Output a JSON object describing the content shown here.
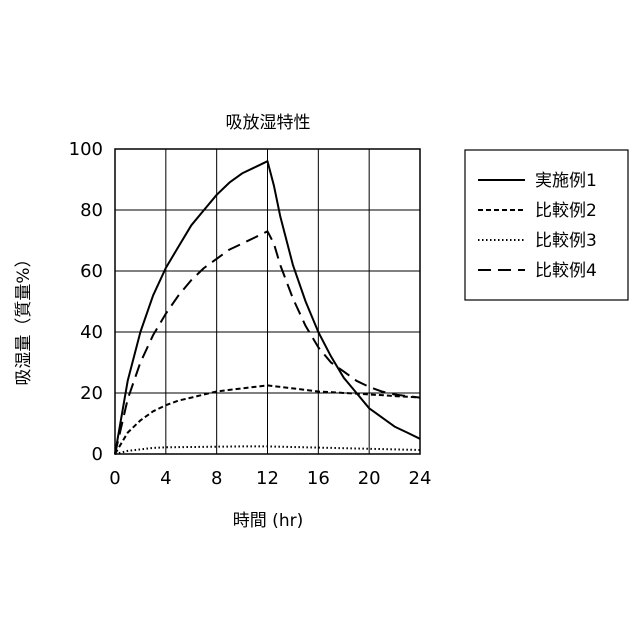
{
  "chart_data": {
    "type": "line",
    "title": "吸放湿特性",
    "xlabel": "時間 (hr)",
    "ylabel": "吸湿量（質量%）",
    "xlim": [
      0,
      24
    ],
    "ylim": [
      0,
      100
    ],
    "xticks": [
      0,
      4,
      8,
      12,
      16,
      20,
      24
    ],
    "yticks": [
      0,
      20,
      40,
      60,
      80,
      100
    ],
    "grid": true,
    "legend_position": "right",
    "series": [
      {
        "name": "実施例1",
        "style": "solid",
        "x": [
          0,
          1,
          2,
          3,
          4,
          5,
          6,
          7,
          8,
          9,
          10,
          11,
          11.5,
          12,
          12.5,
          13,
          14,
          15,
          16,
          17,
          18,
          19,
          20,
          21,
          22,
          23,
          24
        ],
        "y": [
          0,
          24,
          40,
          52,
          61,
          68,
          75,
          80,
          85,
          89,
          92,
          94,
          95,
          96,
          88,
          78,
          62,
          50,
          40,
          32,
          25,
          20,
          15,
          12,
          9,
          7,
          5
        ]
      },
      {
        "name": "比較例2",
        "style": "dashed",
        "x": [
          0,
          1,
          2,
          3,
          4,
          5,
          6,
          7,
          8,
          9,
          10,
          11,
          12,
          13,
          14,
          15,
          16,
          17,
          18,
          19,
          20,
          21,
          22,
          23,
          24
        ],
        "y": [
          0,
          7,
          11,
          14,
          16,
          17.5,
          18.5,
          19.5,
          20.5,
          21,
          21.5,
          22,
          22.5,
          22,
          21.5,
          21,
          20.5,
          20.3,
          20,
          19.8,
          19.5,
          19.3,
          19,
          18.8,
          18.5
        ]
      },
      {
        "name": "比較例3",
        "style": "dotted",
        "x": [
          0,
          1,
          2,
          3,
          4,
          6,
          8,
          10,
          12,
          14,
          16,
          18,
          20,
          22,
          24
        ],
        "y": [
          0,
          1,
          1.5,
          2,
          2.2,
          2.3,
          2.4,
          2.5,
          2.5,
          2.3,
          2.1,
          1.9,
          1.7,
          1.5,
          1.3
        ]
      },
      {
        "name": "比較例4",
        "style": "longdash",
        "x": [
          0,
          1,
          2,
          3,
          4,
          5,
          6,
          7,
          8,
          9,
          10,
          11,
          11.5,
          12,
          12.5,
          13,
          14,
          15,
          16,
          17,
          18,
          19,
          20,
          21,
          22,
          23,
          24
        ],
        "y": [
          0,
          18,
          30,
          39,
          46,
          52,
          57,
          61,
          64,
          67,
          69,
          71,
          72,
          73,
          69,
          62,
          51,
          42,
          35,
          30,
          27,
          24,
          22,
          20.5,
          19.5,
          19,
          18.5
        ]
      }
    ]
  }
}
